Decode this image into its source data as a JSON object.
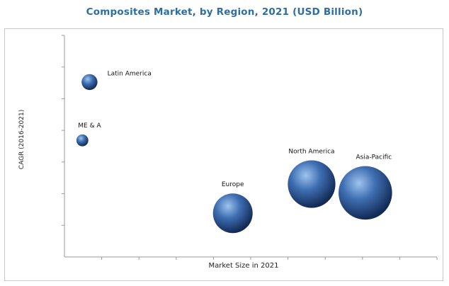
{
  "title": "Composites Market, by Region, 2021 (USD Billion)",
  "colors": {
    "title": "#2e6da4",
    "bubble_light": "#9fc3ee",
    "bubble_mid": "#3f6fb3",
    "bubble_dark": "#122a55",
    "axis": "#9a9a9a"
  },
  "chart_data": {
    "type": "scatter",
    "xlabel": "Market Size in 2021",
    "ylabel": "CAGR (2016-2021)",
    "x_ticks": 10,
    "y_ticks": 7,
    "grid": false,
    "xlim": [
      0,
      10.4
    ],
    "ylim": [
      0,
      7.6
    ],
    "points": [
      {
        "name": "Latin America",
        "x": 0.7,
        "y": 6.0,
        "size": 0.4
      },
      {
        "name": "ME & A",
        "x": 0.5,
        "y": 4.0,
        "size": 0.3
      },
      {
        "name": "Europe",
        "x": 4.7,
        "y": 1.5,
        "size": 1.0
      },
      {
        "name": "North America",
        "x": 6.9,
        "y": 2.5,
        "size": 1.2
      },
      {
        "name": "Asia-Pacific",
        "x": 8.4,
        "y": 2.2,
        "size": 1.35
      }
    ]
  }
}
